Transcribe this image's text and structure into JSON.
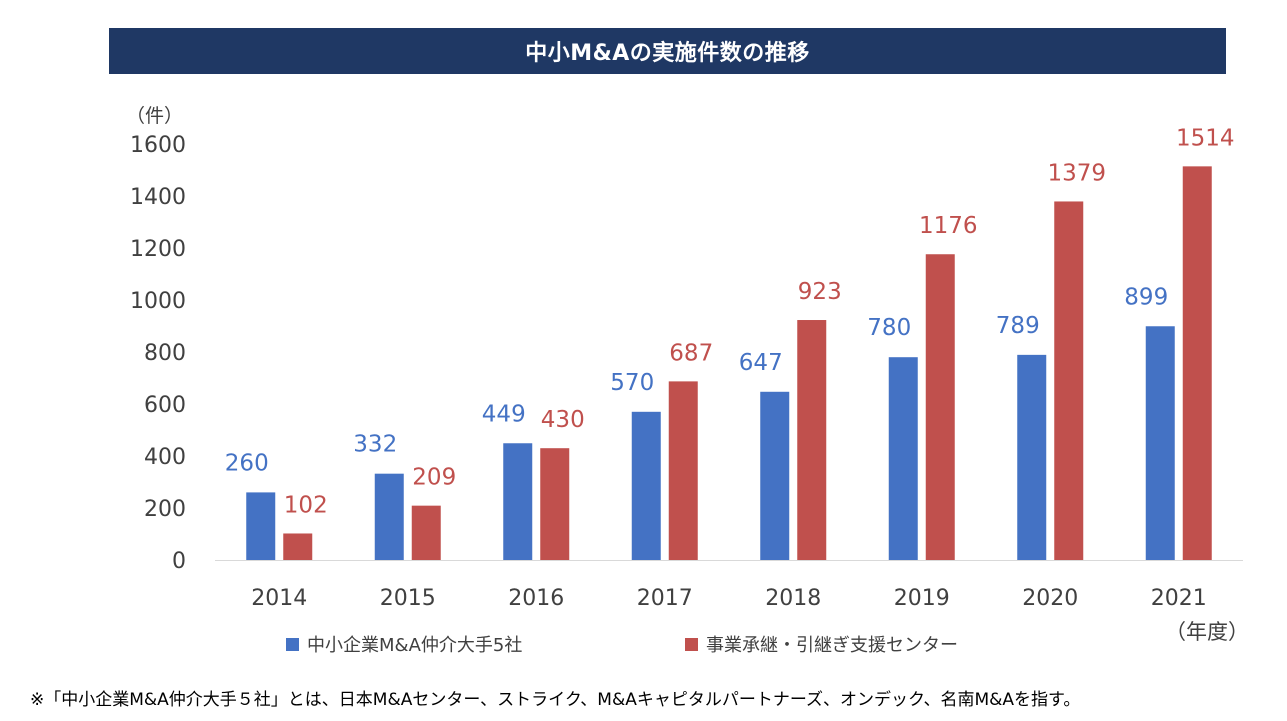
{
  "title": "中小M&Aの実施件数の推移",
  "y_unit": "（件）",
  "x_unit": "（年度）",
  "note": "※「中小企業M&A仲介大手５社」とは、日本M&Aセンター、ストライク、M&Aキャピタルパートナーズ、オンデック、名南M&Aを指す。",
  "chart_data": {
    "type": "bar",
    "categories": [
      "2014",
      "2015",
      "2016",
      "2017",
      "2018",
      "2019",
      "2020",
      "2021"
    ],
    "series": [
      {
        "name": "中小企業M&A仲介大手5社",
        "color": "#4472c4",
        "label_color": "#4472c4",
        "values": [
          260,
          332,
          449,
          570,
          647,
          780,
          789,
          899
        ]
      },
      {
        "name": "事業承継・引継ぎ支援センター",
        "color": "#c0504d",
        "label_color": "#c0504d",
        "values": [
          102,
          209,
          430,
          687,
          923,
          1176,
          1379,
          1514
        ]
      }
    ],
    "yticks": [
      0,
      200,
      400,
      600,
      800,
      1000,
      1200,
      1400,
      1600
    ],
    "ylim": [
      0,
      1600
    ],
    "grid": false,
    "legend_position": "bottom"
  }
}
